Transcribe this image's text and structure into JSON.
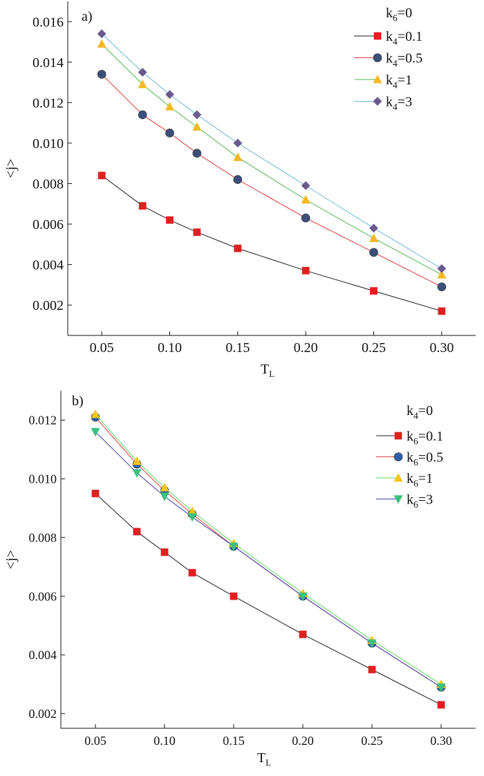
{
  "chart_data": [
    {
      "type": "line",
      "panel_label": "a)",
      "xlabel": "T",
      "xlabel_sub": "L",
      "ylabel": "<j>",
      "xlim": [
        0.025,
        0.325
      ],
      "ylim": [
        0.0005,
        0.017
      ],
      "xticks": [
        "0.05",
        "0.10",
        "0.15",
        "0.20",
        "0.25",
        "0.30"
      ],
      "yticks": [
        "0.002",
        "0.004",
        "0.006",
        "0.008",
        "0.010",
        "0.012",
        "0.014",
        "0.016"
      ],
      "legend_header": {
        "base": "k",
        "sub": "6",
        "tail": "=0"
      },
      "legend_position": "top-right",
      "x": [
        0.05,
        0.08,
        0.1,
        0.12,
        0.15,
        0.2,
        0.25,
        0.3
      ],
      "series": [
        {
          "name": "k4=0.1",
          "label_base": "k",
          "label_sub": "4",
          "label_tail": "=0.1",
          "marker": "square",
          "color": "#e02020",
          "line_color": "#1a1a1a",
          "values": [
            0.0084,
            0.0069,
            0.0062,
            0.0056,
            0.0048,
            0.0037,
            0.0027,
            0.0017
          ]
        },
        {
          "name": "k4=0.5",
          "label_base": "k",
          "label_sub": "4",
          "label_tail": "=0.5",
          "marker": "circle",
          "color": "#3b4f7a",
          "line_color": "#d83a3a",
          "values": [
            0.0134,
            0.0114,
            0.0105,
            0.0095,
            0.0082,
            0.0063,
            0.0046,
            0.0029
          ]
        },
        {
          "name": "k4=1",
          "label_base": "k",
          "label_sub": "4",
          "label_tail": "=1",
          "marker": "triangle-up",
          "color": "#f5b820",
          "line_color": "#4cb64c",
          "values": [
            0.0149,
            0.0129,
            0.0118,
            0.0108,
            0.0093,
            0.0072,
            0.0053,
            0.0035
          ]
        },
        {
          "name": "k4=3",
          "label_base": "k",
          "label_sub": "4",
          "label_tail": "=3",
          "marker": "diamond",
          "color": "#6a5a8e",
          "line_color": "#6ab8d8",
          "values": [
            0.0154,
            0.0135,
            0.0124,
            0.0114,
            0.01,
            0.0079,
            0.0058,
            0.0038
          ]
        }
      ]
    },
    {
      "type": "line",
      "panel_label": "b)",
      "xlabel": "T",
      "xlabel_sub": "L",
      "ylabel": "<j>",
      "xlim": [
        0.025,
        0.325
      ],
      "ylim": [
        0.0015,
        0.013
      ],
      "xticks": [
        "0.05",
        "0.10",
        "0.15",
        "0.20",
        "0.25",
        "0.30"
      ],
      "yticks": [
        "0.002",
        "0.004",
        "0.006",
        "0.008",
        "0.010",
        "0.012"
      ],
      "legend_header": {
        "base": "k",
        "sub": "4",
        "tail": "=0"
      },
      "legend_position": "top-right",
      "x": [
        0.05,
        0.08,
        0.1,
        0.12,
        0.15,
        0.2,
        0.25,
        0.3
      ],
      "series": [
        {
          "name": "k6=0.1",
          "label_base": "k",
          "label_sub": "6",
          "label_tail": "=0.1",
          "marker": "square",
          "color": "#e02020",
          "line_color": "#1a1a1a",
          "values": [
            0.0095,
            0.0082,
            0.0075,
            0.0068,
            0.006,
            0.0047,
            0.0035,
            0.0023
          ]
        },
        {
          "name": "k6=0.5",
          "label_base": "k",
          "label_sub": "6",
          "label_tail": "=0.5",
          "marker": "circle",
          "color": "#2e5fa8",
          "line_color": "#d83a3a",
          "values": [
            0.0121,
            0.0105,
            0.0096,
            0.0088,
            0.0077,
            0.006,
            0.0044,
            0.0029
          ]
        },
        {
          "name": "k6=1",
          "label_base": "k",
          "label_sub": "6",
          "label_tail": "=1",
          "marker": "triangle-up",
          "color": "#f5c518",
          "line_color": "#5ad85a",
          "values": [
            0.0122,
            0.0106,
            0.0097,
            0.0089,
            0.0078,
            0.0061,
            0.0045,
            0.003
          ]
        },
        {
          "name": "k6=3",
          "label_base": "k",
          "label_sub": "6",
          "label_tail": "=3",
          "marker": "triangle-down",
          "color": "#3cc080",
          "line_color": "#3a3aa8",
          "values": [
            0.0116,
            0.0102,
            0.0094,
            0.0087,
            0.0077,
            0.006,
            0.0044,
            0.0029
          ]
        }
      ]
    }
  ]
}
